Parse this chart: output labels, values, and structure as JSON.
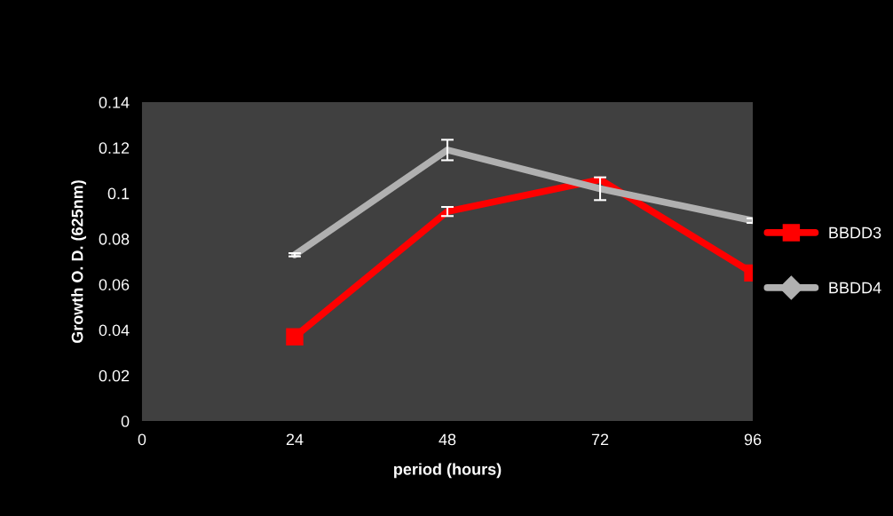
{
  "chart_data": {
    "type": "line",
    "xlabel": "period (hours)",
    "ylabel": "Growth O. D. (625nm)",
    "x": [
      24,
      48,
      72,
      96
    ],
    "series": [
      {
        "name": "BBDD3",
        "color": "#ff0000",
        "marker": "square",
        "values": [
          0.037,
          0.092,
          0.106,
          0.065
        ],
        "errors": [
          null,
          0.002,
          null,
          null
        ]
      },
      {
        "name": "BBDD4",
        "color": "#b0b0b0",
        "marker": "none",
        "values": [
          0.073,
          0.119,
          0.102,
          0.088
        ],
        "errors": [
          0.0007,
          0.0045,
          0.005,
          0.001
        ]
      }
    ],
    "xlim": [
      0,
      96
    ],
    "xticks": [
      0,
      24,
      48,
      72,
      96
    ],
    "ylim": [
      0,
      0.14
    ],
    "yticks": [
      0,
      0.02,
      0.04,
      0.06,
      0.08,
      0.1,
      0.12,
      0.14
    ],
    "grid": false,
    "legend": "right"
  }
}
